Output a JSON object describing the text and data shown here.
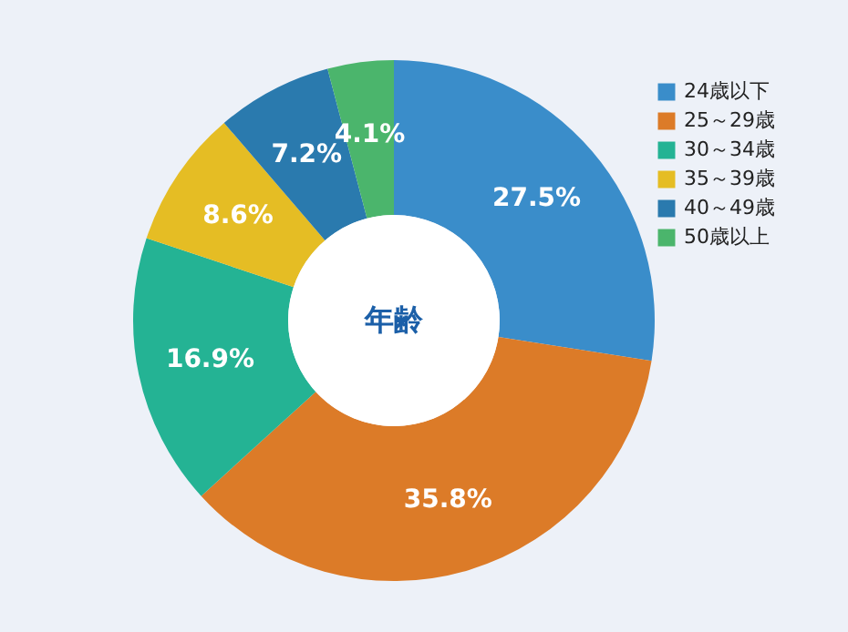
{
  "chart_data": {
    "type": "donut",
    "title": "年齢",
    "categories": [
      "24歳以下",
      "25～29歳",
      "30～34歳",
      "35～39歳",
      "40～49歳",
      "50歳以上"
    ],
    "values": [
      27.5,
      35.8,
      16.9,
      8.6,
      7.2,
      4.1
    ],
    "colors": [
      "#3a8dca",
      "#dc7b28",
      "#24b394",
      "#e5bd24",
      "#2a7aae",
      "#4bb56c"
    ],
    "value_labels": [
      "27.5%",
      "35.8%",
      "16.9%",
      "8.6%",
      "7.2%",
      "4.1%"
    ],
    "legend": "top right"
  }
}
